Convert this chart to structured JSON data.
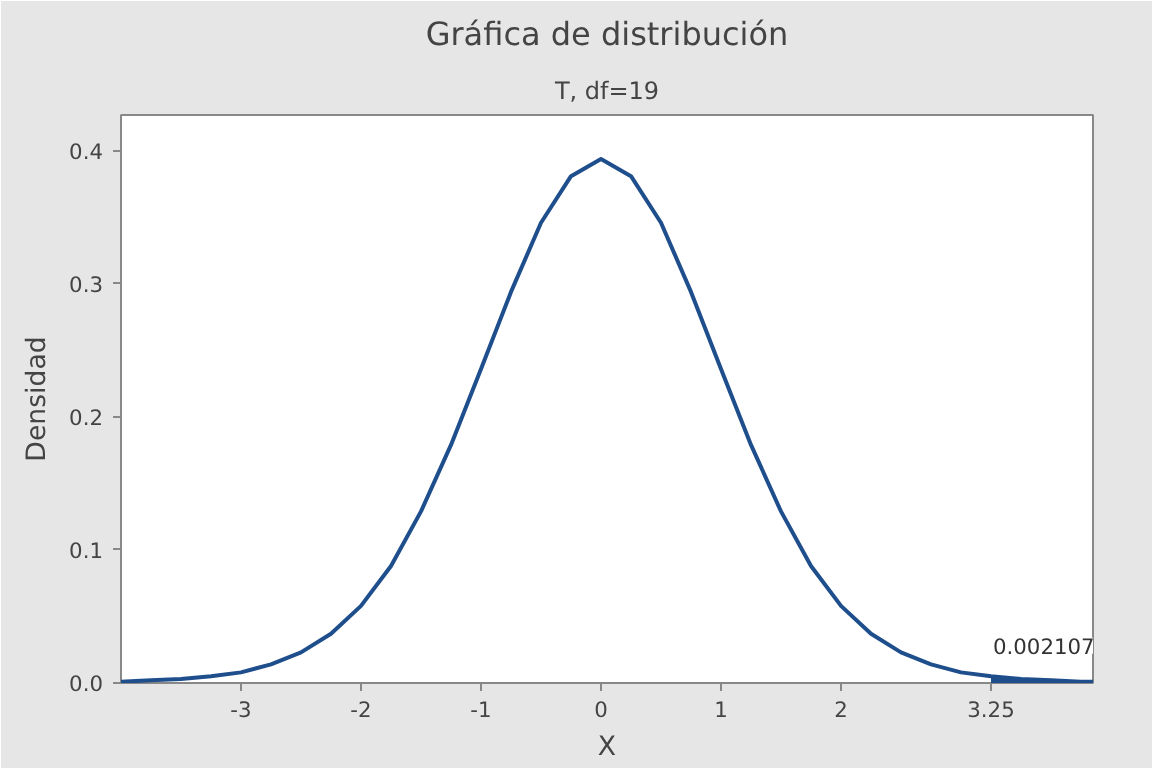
{
  "chart_data": {
    "type": "line",
    "title": "Gráfica de distribución",
    "subtitle": "T, df=19",
    "xlabel": "X",
    "ylabel": "Densidad",
    "xlim": [
      -4.0,
      4.1
    ],
    "ylim": [
      0,
      0.427
    ],
    "xticks": [
      -3,
      -2,
      -1,
      0,
      1,
      2,
      3.25
    ],
    "yticks": [
      {
        "value": 0,
        "label": "0.0"
      },
      {
        "value": 0.1,
        "label": "0.1"
      },
      {
        "value": 0.2,
        "label": "0.2"
      },
      {
        "value": 0.3,
        "label": "0.3"
      },
      {
        "value": 0.4,
        "label": "0.4"
      }
    ],
    "grid": false,
    "marker": "none",
    "line_style": "solid",
    "series": [
      {
        "color": "#1f4e8c",
        "x": [
          -4,
          -3.75,
          -3.5,
          -3.25,
          -3,
          -2.75,
          -2.5,
          -2.25,
          -2,
          -1.75,
          -1.5,
          -1.25,
          -1,
          -0.75,
          -0.5,
          -0.25,
          0,
          0.25,
          0.5,
          0.75,
          1,
          1.25,
          1.5,
          1.75,
          2,
          2.25,
          2.5,
          2.75,
          3,
          3.25,
          3.5,
          3.75,
          4,
          4.1
        ],
        "values": [
          0.001,
          0.002,
          0.003,
          0.005,
          0.008,
          0.014,
          0.023,
          0.037,
          0.058,
          0.088,
          0.129,
          0.179,
          0.236,
          0.294,
          0.346,
          0.381,
          0.394,
          0.381,
          0.346,
          0.294,
          0.236,
          0.179,
          0.129,
          0.088,
          0.058,
          0.037,
          0.023,
          0.014,
          0.008,
          0.005,
          0.003,
          0.002,
          0.001,
          0.001
        ]
      },
      {
        "type": "area",
        "color": "#1f4e8c",
        "x": [
          3.25,
          3.5,
          3.75,
          4,
          4.1
        ],
        "values": [
          0.005,
          0.003,
          0.002,
          0.001,
          0.001
        ]
      }
    ],
    "annotations": [
      "0.002107"
    ]
  }
}
